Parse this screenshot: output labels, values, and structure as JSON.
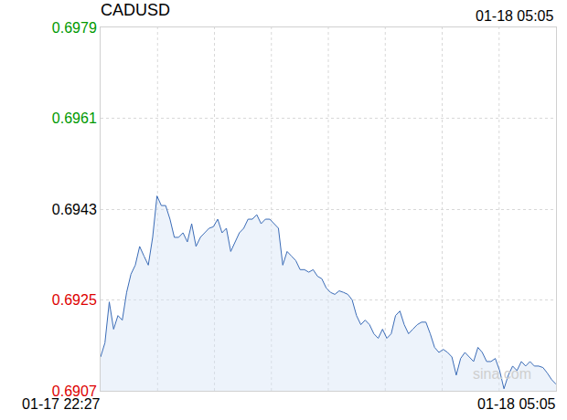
{
  "chart_data": {
    "type": "line",
    "title": "CADUSD",
    "annotations": [
      "01-18 05:05",
      "sina.com"
    ],
    "categories": [
      "01-17 22:27",
      null,
      null,
      null,
      null,
      null,
      null,
      null,
      null,
      null,
      null,
      null,
      null,
      null,
      null,
      null,
      null,
      null,
      null,
      null,
      null,
      null,
      null,
      null,
      null,
      null,
      null,
      null,
      null,
      null,
      null,
      null,
      null,
      null,
      null,
      null,
      null,
      null,
      null,
      null,
      null,
      null,
      null,
      null,
      null,
      null,
      null,
      null,
      null,
      null,
      null,
      null,
      null,
      null,
      null,
      null,
      null,
      null,
      null,
      null,
      null,
      null,
      null,
      null,
      null,
      null,
      null,
      null,
      null,
      null,
      null,
      null,
      null,
      null,
      null,
      null,
      null,
      null,
      null,
      null,
      null,
      null,
      null,
      null,
      null,
      null,
      null,
      null,
      null,
      null,
      null,
      null,
      null,
      null,
      null,
      null,
      null,
      null,
      null,
      null,
      null,
      null,
      null,
      null,
      null,
      "01-18 05:05"
    ],
    "values": [
      0.69137,
      0.69165,
      0.69246,
      0.69192,
      0.69219,
      0.6921,
      0.69265,
      0.69301,
      0.69319,
      0.69356,
      0.69337,
      0.69319,
      0.69374,
      0.69456,
      0.69437,
      0.69437,
      0.6941,
      0.69374,
      0.69374,
      0.69383,
      0.69365,
      0.69401,
      0.69356,
      0.69374,
      0.69383,
      0.69392,
      0.69395,
      0.6941,
      0.69383,
      0.69392,
      0.69346,
      0.69365,
      0.69383,
      0.69392,
      0.6941,
      0.6941,
      0.69419,
      0.69401,
      0.6941,
      0.6941,
      0.69401,
      0.69392,
      0.69319,
      0.69346,
      0.69337,
      0.69328,
      0.6931,
      0.6931,
      0.69305,
      0.6931,
      0.69297,
      0.69292,
      0.69274,
      0.69265,
      0.69261,
      0.69268,
      0.69265,
      0.69261,
      0.6925,
      0.69219,
      0.69201,
      0.6921,
      0.69201,
      0.69183,
      0.69174,
      0.69192,
      0.69174,
      0.69183,
      0.69219,
      0.69228,
      0.69201,
      0.69183,
      0.69192,
      0.69201,
      0.69206,
      0.69206,
      0.69183,
      0.69156,
      0.69146,
      0.69152,
      0.69146,
      0.69137,
      0.69101,
      0.69134,
      0.69146,
      0.69137,
      0.69128,
      0.69156,
      0.69146,
      0.69128,
      0.69128,
      0.69134,
      0.6911,
      0.69074,
      0.69101,
      0.69119,
      0.6911,
      0.69128,
      0.69119,
      0.69128,
      0.69119,
      0.69119,
      0.69116,
      0.69105,
      0.69092,
      0.69083
    ],
    "color": "#3b6cb7",
    "ylim": [
      0.6907,
      0.6979
    ],
    "yticks": [
      0.6907,
      0.6925,
      0.6943,
      0.6961,
      0.6979
    ],
    "grid": true
  }
}
